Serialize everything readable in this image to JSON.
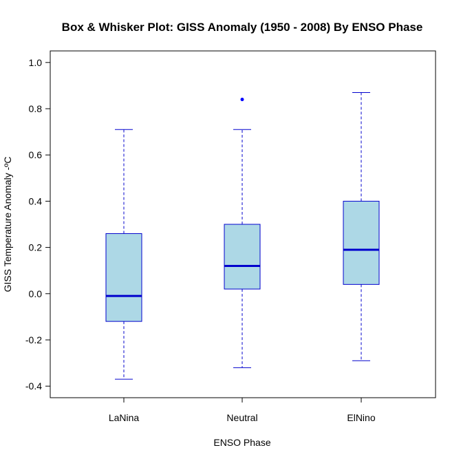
{
  "chart_data": {
    "type": "box",
    "title": "Box & Whisker Plot: GISS Anomaly (1950 - 2008) By ENSO Phase",
    "xlabel": "ENSO Phase",
    "ylabel": "GISS Temperature Anomaly -ºC",
    "ylim": [
      -0.45,
      1.05
    ],
    "yticks": [
      "-0.4",
      "-0.2",
      "0.0",
      "0.2",
      "0.4",
      "0.6",
      "0.8",
      "1.0"
    ],
    "grid": false,
    "colors": {
      "box_fill": "#add8e6",
      "box_border": "#0000cd",
      "median": "#0000cd",
      "whisker": "#0000cd",
      "outlier": "#0000ff",
      "frame": "#000000"
    },
    "categories": [
      "LaNina",
      "Neutral",
      "ElNino"
    ],
    "boxes": [
      {
        "category": "LaNina",
        "whisker_low": -0.37,
        "q1": -0.12,
        "median": -0.01,
        "q3": 0.26,
        "whisker_high": 0.71,
        "outliers": []
      },
      {
        "category": "Neutral",
        "whisker_low": -0.32,
        "q1": 0.02,
        "median": 0.12,
        "q3": 0.3,
        "whisker_high": 0.71,
        "outliers": [
          0.84
        ]
      },
      {
        "category": "ElNino",
        "whisker_low": -0.29,
        "q1": 0.04,
        "median": 0.19,
        "q3": 0.4,
        "whisker_high": 0.87,
        "outliers": []
      }
    ]
  }
}
